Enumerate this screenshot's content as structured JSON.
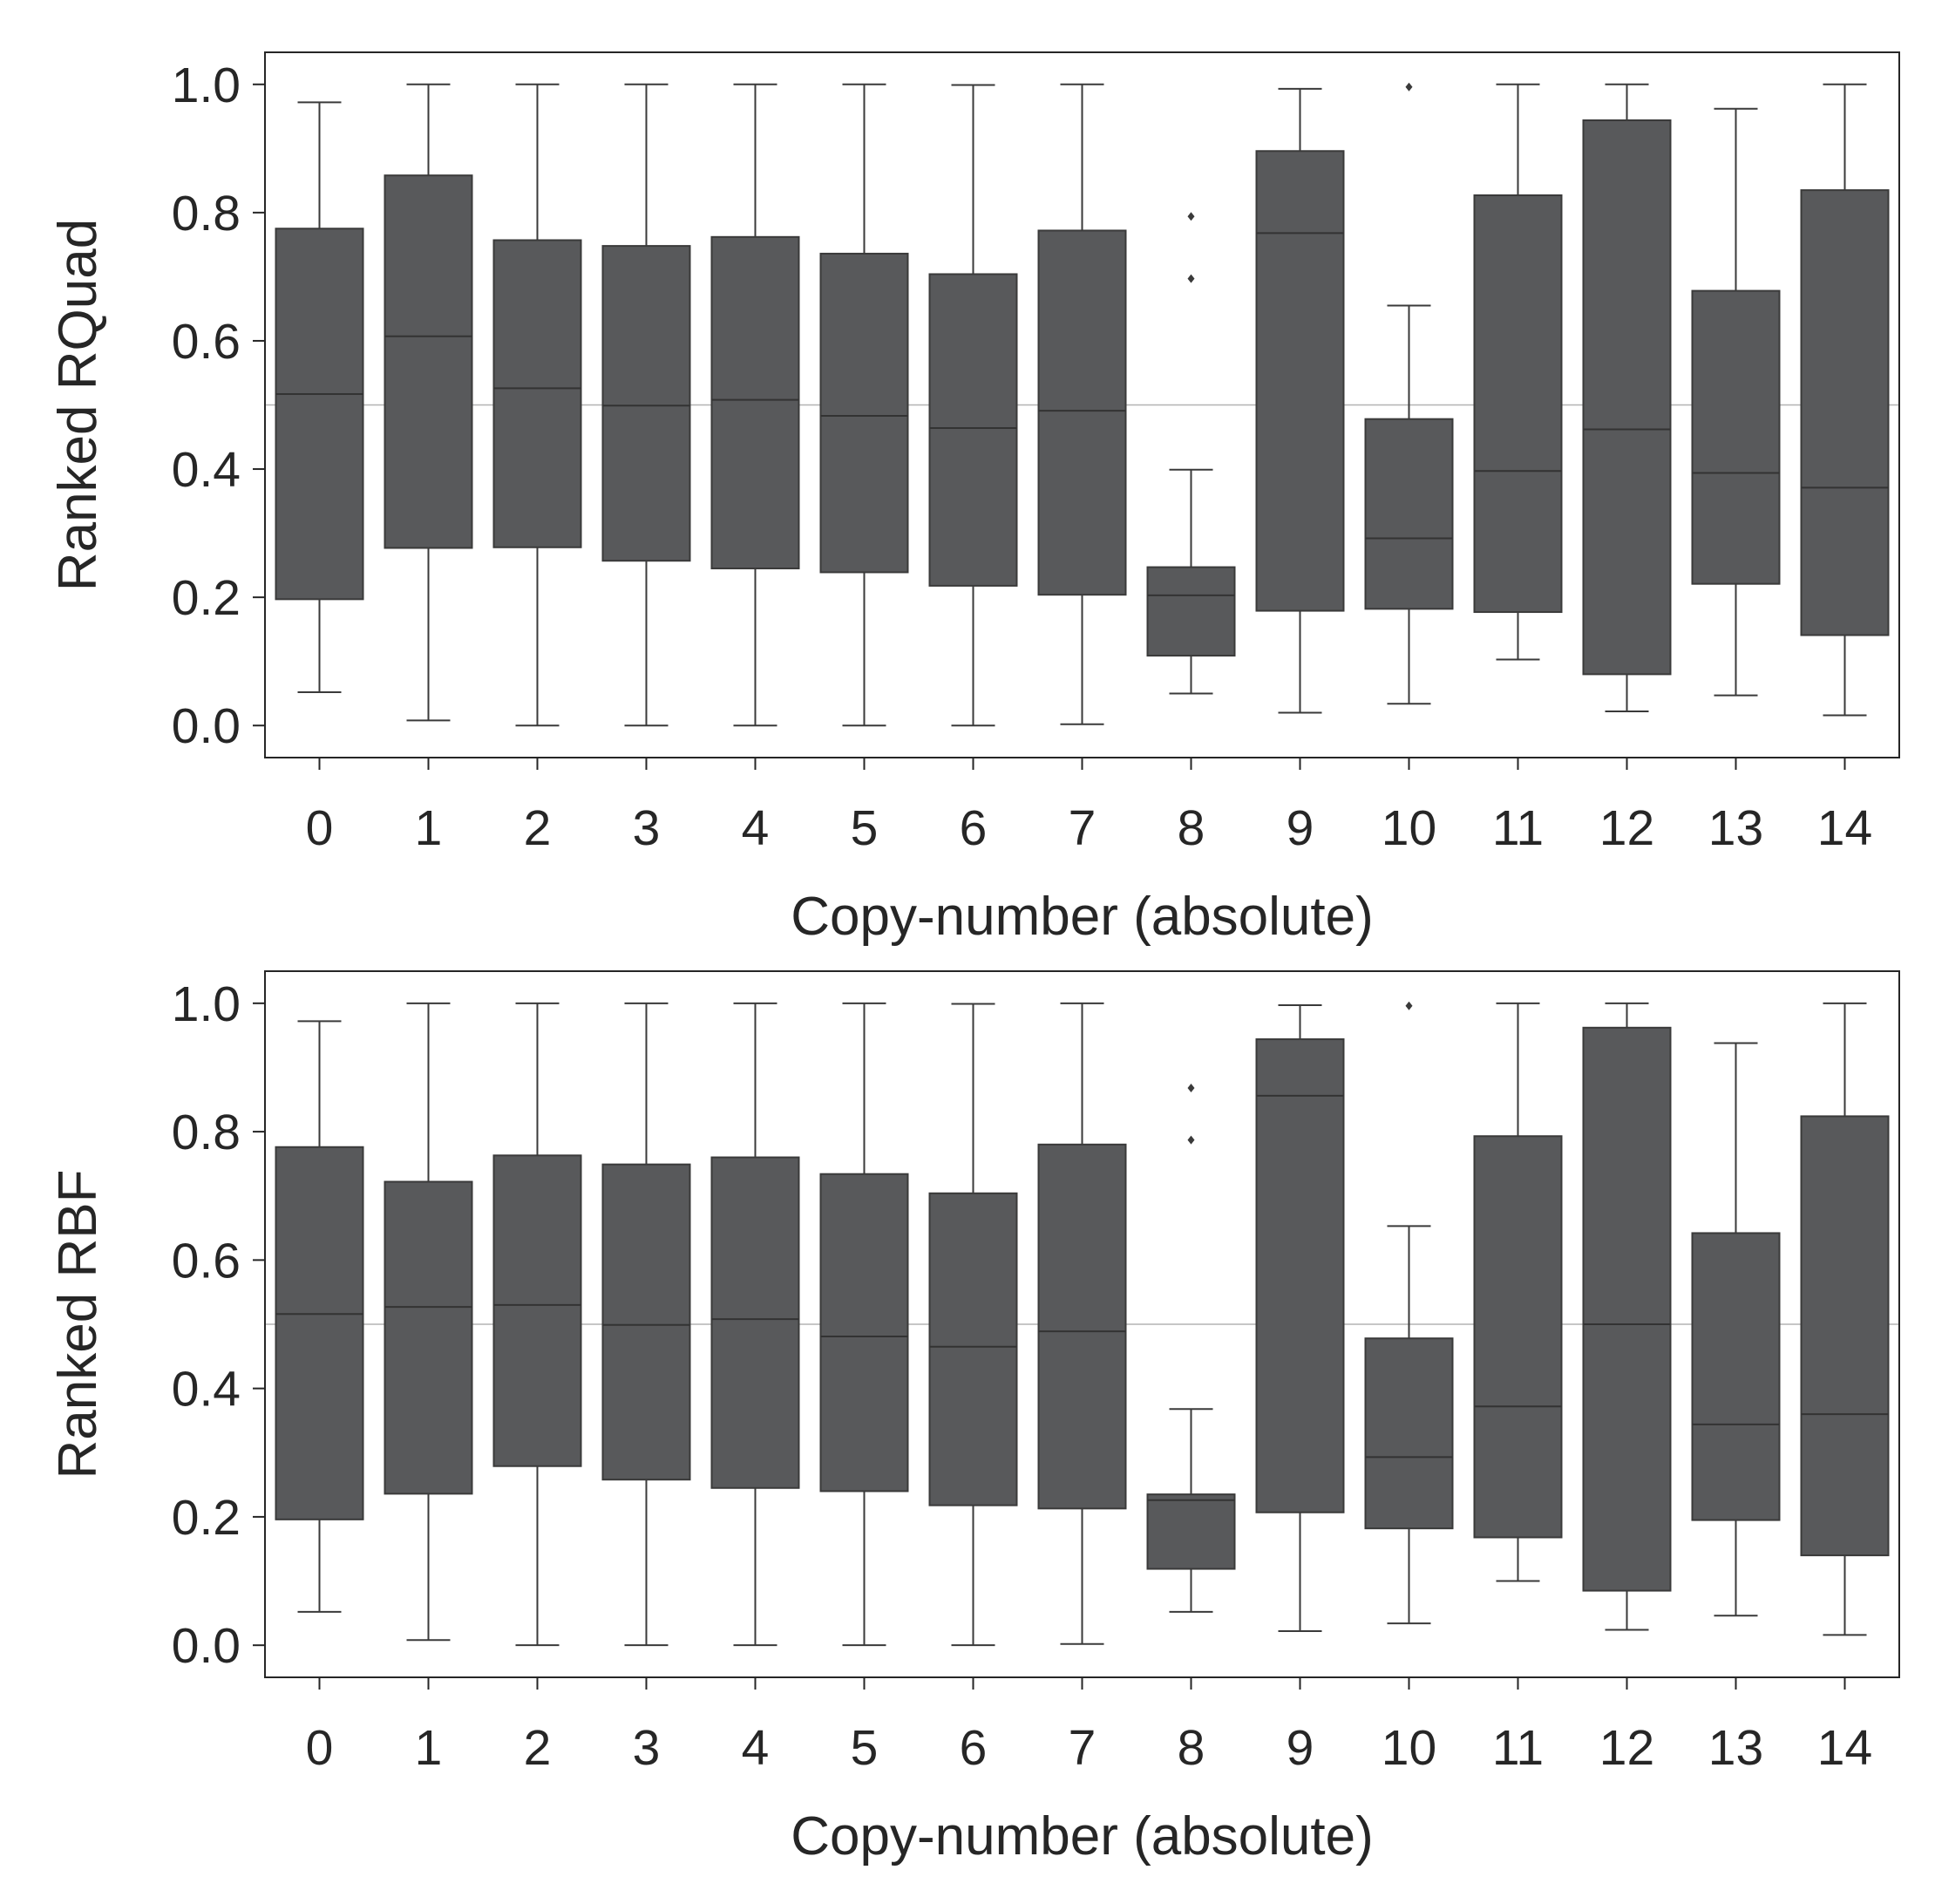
{
  "chart_data": [
    {
      "type": "box",
      "xlabel": "Copy-number (absolute)",
      "ylabel": "Ranked RQuad",
      "categories": [
        "0",
        "1",
        "2",
        "3",
        "4",
        "5",
        "6",
        "7",
        "8",
        "9",
        "10",
        "11",
        "12",
        "13",
        "14"
      ],
      "ylim": [
        -0.05,
        1.05
      ],
      "yticks": [
        "0.0",
        "0.2",
        "0.4",
        "0.6",
        "0.8",
        "1.0"
      ],
      "reference_line": 0.5,
      "grid": false,
      "box_color": "#58595b",
      "line_color": "#3a3a3a",
      "boxes": [
        {
          "category": "0",
          "whisker_low": 0.052,
          "q1": 0.197,
          "median": 0.517,
          "q3": 0.775,
          "whisker_high": 0.972,
          "outliers": []
        },
        {
          "category": "1",
          "whisker_low": 0.008,
          "q1": 0.277,
          "median": 0.607,
          "q3": 0.858,
          "whisker_high": 1.0,
          "outliers": []
        },
        {
          "category": "2",
          "whisker_low": 0.0,
          "q1": 0.278,
          "median": 0.526,
          "q3": 0.757,
          "whisker_high": 1.0,
          "outliers": []
        },
        {
          "category": "3",
          "whisker_low": 0.0,
          "q1": 0.257,
          "median": 0.499,
          "q3": 0.748,
          "whisker_high": 1.0,
          "outliers": []
        },
        {
          "category": "4",
          "whisker_low": 0.0,
          "q1": 0.245,
          "median": 0.508,
          "q3": 0.762,
          "whisker_high": 1.0,
          "outliers": []
        },
        {
          "category": "5",
          "whisker_low": 0.0,
          "q1": 0.239,
          "median": 0.483,
          "q3": 0.736,
          "whisker_high": 1.0,
          "outliers": []
        },
        {
          "category": "6",
          "whisker_low": 0.0,
          "q1": 0.218,
          "median": 0.464,
          "q3": 0.704,
          "whisker_high": 0.999,
          "outliers": []
        },
        {
          "category": "7",
          "whisker_low": 0.002,
          "q1": 0.204,
          "median": 0.491,
          "q3": 0.772,
          "whisker_high": 1.0,
          "outliers": []
        },
        {
          "category": "8",
          "whisker_low": 0.05,
          "q1": 0.109,
          "median": 0.203,
          "q3": 0.247,
          "whisker_high": 0.399,
          "outliers": [
            0.697,
            0.794
          ]
        },
        {
          "category": "9",
          "whisker_low": 0.02,
          "q1": 0.179,
          "median": 0.768,
          "q3": 0.896,
          "whisker_high": 0.993,
          "outliers": []
        },
        {
          "category": "10",
          "whisker_low": 0.034,
          "q1": 0.182,
          "median": 0.292,
          "q3": 0.478,
          "whisker_high": 0.655,
          "outliers": [
            0.996
          ]
        },
        {
          "category": "11",
          "whisker_low": 0.103,
          "q1": 0.177,
          "median": 0.397,
          "q3": 0.827,
          "whisker_high": 1.0,
          "outliers": []
        },
        {
          "category": "12",
          "whisker_low": 0.022,
          "q1": 0.08,
          "median": 0.462,
          "q3": 0.944,
          "whisker_high": 1.0,
          "outliers": []
        },
        {
          "category": "13",
          "whisker_low": 0.047,
          "q1": 0.221,
          "median": 0.394,
          "q3": 0.678,
          "whisker_high": 0.962,
          "outliers": []
        },
        {
          "category": "14",
          "whisker_low": 0.016,
          "q1": 0.141,
          "median": 0.371,
          "q3": 0.835,
          "whisker_high": 1.0,
          "outliers": []
        }
      ]
    },
    {
      "type": "box",
      "xlabel": "Copy-number (absolute)",
      "ylabel": "Ranked RBF",
      "categories": [
        "0",
        "1",
        "2",
        "3",
        "4",
        "5",
        "6",
        "7",
        "8",
        "9",
        "10",
        "11",
        "12",
        "13",
        "14"
      ],
      "ylim": [
        -0.05,
        1.05
      ],
      "yticks": [
        "0.0",
        "0.2",
        "0.4",
        "0.6",
        "0.8",
        "1.0"
      ],
      "reference_line": 0.5,
      "grid": false,
      "box_color": "#58595b",
      "line_color": "#3a3a3a",
      "boxes": [
        {
          "category": "0",
          "whisker_low": 0.052,
          "q1": 0.196,
          "median": 0.516,
          "q3": 0.776,
          "whisker_high": 0.972,
          "outliers": []
        },
        {
          "category": "1",
          "whisker_low": 0.008,
          "q1": 0.236,
          "median": 0.527,
          "q3": 0.722,
          "whisker_high": 1.0,
          "outliers": []
        },
        {
          "category": "2",
          "whisker_low": 0.0,
          "q1": 0.279,
          "median": 0.53,
          "q3": 0.763,
          "whisker_high": 1.0,
          "outliers": []
        },
        {
          "category": "3",
          "whisker_low": 0.0,
          "q1": 0.258,
          "median": 0.499,
          "q3": 0.749,
          "whisker_high": 1.0,
          "outliers": []
        },
        {
          "category": "4",
          "whisker_low": 0.0,
          "q1": 0.245,
          "median": 0.508,
          "q3": 0.76,
          "whisker_high": 1.0,
          "outliers": []
        },
        {
          "category": "5",
          "whisker_low": 0.0,
          "q1": 0.24,
          "median": 0.481,
          "q3": 0.734,
          "whisker_high": 1.0,
          "outliers": []
        },
        {
          "category": "6",
          "whisker_low": 0.0,
          "q1": 0.218,
          "median": 0.465,
          "q3": 0.704,
          "whisker_high": 0.999,
          "outliers": []
        },
        {
          "category": "7",
          "whisker_low": 0.002,
          "q1": 0.213,
          "median": 0.489,
          "q3": 0.78,
          "whisker_high": 1.0,
          "outliers": []
        },
        {
          "category": "8",
          "whisker_low": 0.052,
          "q1": 0.119,
          "median": 0.226,
          "q3": 0.235,
          "whisker_high": 0.368,
          "outliers": [
            0.787,
            0.868
          ]
        },
        {
          "category": "9",
          "whisker_low": 0.022,
          "q1": 0.207,
          "median": 0.856,
          "q3": 0.944,
          "whisker_high": 0.997,
          "outliers": []
        },
        {
          "category": "10",
          "whisker_low": 0.034,
          "q1": 0.182,
          "median": 0.293,
          "q3": 0.478,
          "whisker_high": 0.653,
          "outliers": [
            0.996
          ]
        },
        {
          "category": "11",
          "whisker_low": 0.1,
          "q1": 0.168,
          "median": 0.372,
          "q3": 0.793,
          "whisker_high": 1.0,
          "outliers": []
        },
        {
          "category": "12",
          "whisker_low": 0.024,
          "q1": 0.085,
          "median": 0.5,
          "q3": 0.962,
          "whisker_high": 1.0,
          "outliers": []
        },
        {
          "category": "13",
          "whisker_low": 0.046,
          "q1": 0.195,
          "median": 0.344,
          "q3": 0.642,
          "whisker_high": 0.938,
          "outliers": []
        },
        {
          "category": "14",
          "whisker_low": 0.016,
          "q1": 0.14,
          "median": 0.36,
          "q3": 0.824,
          "whisker_high": 1.0,
          "outliers": []
        }
      ]
    }
  ]
}
